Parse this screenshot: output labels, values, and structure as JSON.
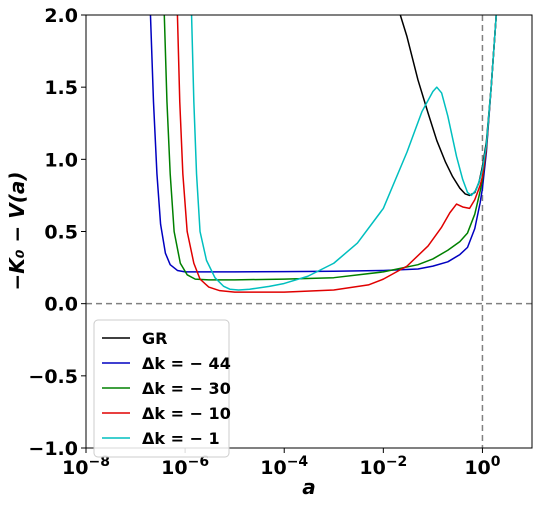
{
  "chart_data": {
    "type": "line",
    "xlabel": "a",
    "ylabel": "−K₀ − V(a)",
    "xscale": "log",
    "xlim": [
      1e-08,
      10
    ],
    "ylim": [
      -1.0,
      2.0
    ],
    "x_ticks": [
      {
        "value": 1e-08,
        "base": "10",
        "exp": "−8"
      },
      {
        "value": 1e-06,
        "base": "10",
        "exp": "−6"
      },
      {
        "value": 0.0001,
        "base": "10",
        "exp": "−4"
      },
      {
        "value": 0.01,
        "base": "10",
        "exp": "−2"
      },
      {
        "value": 1,
        "base": "10",
        "exp": "0"
      }
    ],
    "y_ticks": [
      {
        "value": -1.0,
        "label": "−1.0"
      },
      {
        "value": -0.5,
        "label": "−0.5"
      },
      {
        "value": 0.0,
        "label": "0.0"
      },
      {
        "value": 0.5,
        "label": "0.5"
      },
      {
        "value": 1.0,
        "label": "1.0"
      },
      {
        "value": 1.5,
        "label": "1.5"
      },
      {
        "value": 2.0,
        "label": "2.0"
      }
    ],
    "reference_lines": [
      {
        "orientation": "horizontal",
        "value": 0.0,
        "style": "dashed",
        "color": "#808080"
      },
      {
        "orientation": "vertical",
        "value": 1.0,
        "style": "dashed",
        "color": "#808080"
      }
    ],
    "legend_position": "lower-left",
    "series": [
      {
        "name": "GR",
        "label_main": "GR",
        "label_value": "",
        "color": "#000000",
        "points": [
          [
            0.022,
            2.0
          ],
          [
            0.03,
            1.85
          ],
          [
            0.05,
            1.55
          ],
          [
            0.08,
            1.32
          ],
          [
            0.12,
            1.13
          ],
          [
            0.18,
            0.98
          ],
          [
            0.25,
            0.88
          ],
          [
            0.35,
            0.8
          ],
          [
            0.45,
            0.76
          ],
          [
            0.55,
            0.75
          ],
          [
            0.7,
            0.77
          ],
          [
            0.85,
            0.84
          ],
          [
            1.0,
            0.95
          ],
          [
            1.2,
            1.12
          ],
          [
            1.5,
            1.5
          ],
          [
            1.9,
            2.0
          ]
        ]
      },
      {
        "name": "Δk = −44",
        "label_main": "Δk",
        "label_value": " = − 44",
        "color": "#0000c0",
        "points": [
          [
            2e-07,
            2.0
          ],
          [
            2.3e-07,
            1.4
          ],
          [
            2.7e-07,
            0.9
          ],
          [
            3.2e-07,
            0.55
          ],
          [
            4e-07,
            0.35
          ],
          [
            5e-07,
            0.27
          ],
          [
            7e-07,
            0.23
          ],
          [
            1e-06,
            0.22
          ],
          [
            1e-05,
            0.22
          ],
          [
            0.0001,
            0.222
          ],
          [
            0.001,
            0.225
          ],
          [
            0.01,
            0.23
          ],
          [
            0.05,
            0.24
          ],
          [
            0.1,
            0.26
          ],
          [
            0.2,
            0.29
          ],
          [
            0.35,
            0.34
          ],
          [
            0.5,
            0.39
          ],
          [
            0.7,
            0.52
          ],
          [
            0.9,
            0.7
          ],
          [
            1.0,
            0.8
          ],
          [
            1.2,
            1.05
          ],
          [
            1.5,
            1.5
          ],
          [
            1.9,
            2.0
          ]
        ]
      },
      {
        "name": "Δk = −30",
        "label_main": "Δk",
        "label_value": " = − 30",
        "color": "#008000",
        "points": [
          [
            3.8e-07,
            2.0
          ],
          [
            4.3e-07,
            1.4
          ],
          [
            5e-07,
            0.9
          ],
          [
            6e-07,
            0.5
          ],
          [
            8e-07,
            0.28
          ],
          [
            1.1e-06,
            0.2
          ],
          [
            1.6e-06,
            0.17
          ],
          [
            3e-06,
            0.165
          ],
          [
            1e-05,
            0.165
          ],
          [
            0.0001,
            0.17
          ],
          [
            0.001,
            0.18
          ],
          [
            0.01,
            0.22
          ],
          [
            0.05,
            0.27
          ],
          [
            0.1,
            0.31
          ],
          [
            0.2,
            0.37
          ],
          [
            0.35,
            0.43
          ],
          [
            0.5,
            0.49
          ],
          [
            0.7,
            0.62
          ],
          [
            0.9,
            0.78
          ],
          [
            1.0,
            0.86
          ],
          [
            1.2,
            1.08
          ],
          [
            1.5,
            1.5
          ],
          [
            1.9,
            2.0
          ]
        ]
      },
      {
        "name": "Δk = −10",
        "label_main": "Δk",
        "label_value": " = − 10",
        "color": "#e00000",
        "points": [
          [
            7e-07,
            2.0
          ],
          [
            7.8e-07,
            1.4
          ],
          [
            9e-07,
            0.9
          ],
          [
            1.1e-06,
            0.5
          ],
          [
            1.5e-06,
            0.28
          ],
          [
            2e-06,
            0.17
          ],
          [
            3e-06,
            0.115
          ],
          [
            5e-06,
            0.09
          ],
          [
            1e-05,
            0.08
          ],
          [
            0.0001,
            0.08
          ],
          [
            0.001,
            0.095
          ],
          [
            0.005,
            0.13
          ],
          [
            0.01,
            0.17
          ],
          [
            0.03,
            0.26
          ],
          [
            0.08,
            0.4
          ],
          [
            0.15,
            0.53
          ],
          [
            0.22,
            0.63
          ],
          [
            0.3,
            0.69
          ],
          [
            0.4,
            0.67
          ],
          [
            0.55,
            0.66
          ],
          [
            0.7,
            0.72
          ],
          [
            0.9,
            0.82
          ],
          [
            1.0,
            0.88
          ],
          [
            1.2,
            1.08
          ],
          [
            1.5,
            1.5
          ],
          [
            1.9,
            2.0
          ]
        ]
      },
      {
        "name": "Δk = −1",
        "label_main": "Δk",
        "label_value": " = − 1",
        "color": "#00bfbf",
        "points": [
          [
            1.35e-06,
            2.0
          ],
          [
            1.5e-06,
            1.4
          ],
          [
            1.7e-06,
            0.9
          ],
          [
            2e-06,
            0.5
          ],
          [
            2.7e-06,
            0.3
          ],
          [
            4e-06,
            0.18
          ],
          [
            6e-06,
            0.12
          ],
          [
            8e-06,
            0.1
          ],
          [
            1.2e-05,
            0.095
          ],
          [
            2e-05,
            0.1
          ],
          [
            5e-05,
            0.12
          ],
          [
            0.0001,
            0.14
          ],
          [
            0.0003,
            0.19
          ],
          [
            0.001,
            0.28
          ],
          [
            0.003,
            0.42
          ],
          [
            0.01,
            0.66
          ],
          [
            0.03,
            1.05
          ],
          [
            0.06,
            1.33
          ],
          [
            0.1,
            1.47
          ],
          [
            0.12,
            1.5
          ],
          [
            0.15,
            1.46
          ],
          [
            0.2,
            1.3
          ],
          [
            0.3,
            1.02
          ],
          [
            0.4,
            0.86
          ],
          [
            0.5,
            0.77
          ],
          [
            0.6,
            0.75
          ],
          [
            0.75,
            0.79
          ],
          [
            0.9,
            0.87
          ],
          [
            1.0,
            0.93
          ],
          [
            1.2,
            1.1
          ],
          [
            1.5,
            1.5
          ],
          [
            1.9,
            2.0
          ]
        ]
      }
    ]
  }
}
